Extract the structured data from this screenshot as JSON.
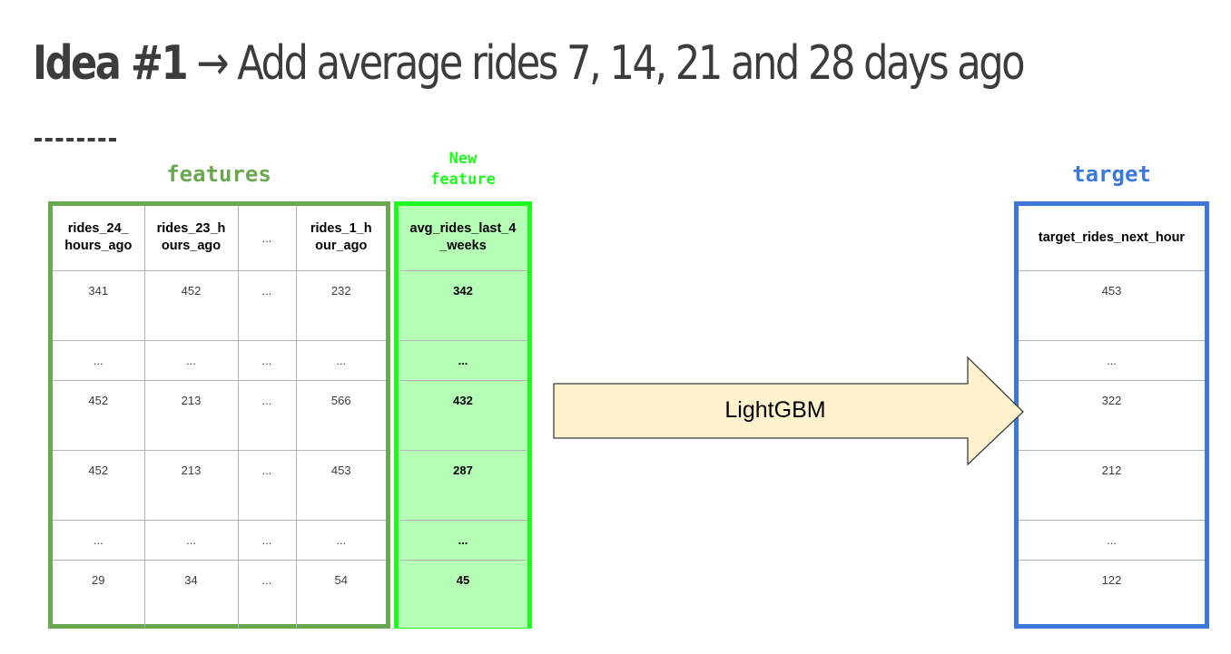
{
  "title": {
    "strong": "Idea #1",
    "rest": " → Add average rides 7, 14, 21 and 28 days ago"
  },
  "labels": {
    "features": "features",
    "new_feature_line1": "New",
    "new_feature_line2": "feature",
    "target": "target"
  },
  "features_table": {
    "headers": [
      "rides_24_ hours_ago",
      "rides_23_h ours_ago",
      "...",
      "rides_1_h our_ago"
    ],
    "rows": [
      [
        "341",
        "452",
        "...",
        "232"
      ],
      [
        "...",
        "...",
        "...",
        "..."
      ],
      [
        "452",
        "213",
        "...",
        "566"
      ],
      [
        "452",
        "213",
        "...",
        "453"
      ],
      [
        "...",
        "...",
        "...",
        "..."
      ],
      [
        "29",
        "34",
        "...",
        "54"
      ]
    ]
  },
  "new_feature_table": {
    "header": "avg_rides_last_4 _weeks",
    "rows": [
      "342",
      "...",
      "432",
      "287",
      "...",
      "45"
    ]
  },
  "target_table": {
    "header": "target_rides_next_hour",
    "rows": [
      "453",
      "...",
      "322",
      "212",
      "...",
      "122"
    ]
  },
  "model": {
    "label": "LightGBM"
  },
  "colors": {
    "features_border": "#6aa84f",
    "new_feature_border": "#1ff91f",
    "new_feature_fill": "#b6ffb6",
    "target_border": "#3c78d8",
    "arrow_fill": "#fff2cc",
    "title_text": "#3c3c3c"
  }
}
